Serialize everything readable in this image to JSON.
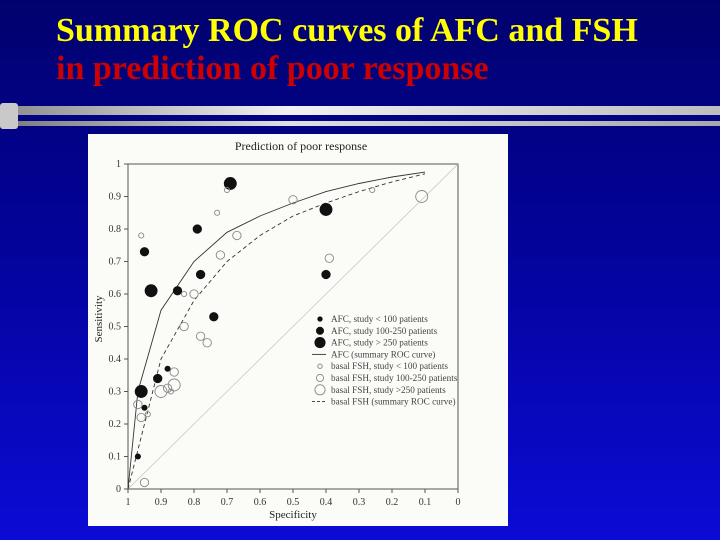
{
  "slide": {
    "title_line1": "Summary ROC curves of AFC and FSH",
    "title_line2": "in prediction of  poor response",
    "title_color_line1": "#ffff00",
    "title_color_line2": "#cc0000"
  },
  "chart_data": {
    "type": "scatter",
    "title": "Prediction of poor response",
    "xlabel": "Specificity",
    "ylabel": "Sensitivity",
    "x_reversed": true,
    "xlim": [
      1,
      0
    ],
    "ylim": [
      0,
      1
    ],
    "x_ticks": [
      "1",
      "0.9",
      "0.8",
      "0.7",
      "0.6",
      "0.5",
      "0.4",
      "0.3",
      "0.2",
      "0.1",
      "0"
    ],
    "x_tick_values": [
      1,
      0.9,
      0.8,
      0.7,
      0.6,
      0.5,
      0.4,
      0.3,
      0.2,
      0.1,
      0
    ],
    "y_ticks": [
      "0",
      "0.1",
      "0.2",
      "0.3",
      "0.4",
      "0.5",
      "0.6",
      "0.7",
      "0.8",
      "0.9",
      "1"
    ],
    "y_tick_values": [
      0,
      0.1,
      0.2,
      0.3,
      0.4,
      0.5,
      0.6,
      0.7,
      0.8,
      0.9,
      1
    ],
    "grid": false,
    "legend_position": "lower-right",
    "series": [
      {
        "name": "AFC, study < 100 patients",
        "marker": "filled",
        "size": "small",
        "points": [
          [
            0.97,
            0.1
          ],
          [
            0.88,
            0.37
          ],
          [
            0.95,
            0.25
          ]
        ]
      },
      {
        "name": "AFC, study 100-250 patients",
        "marker": "filled",
        "size": "medium",
        "points": [
          [
            0.95,
            0.73
          ],
          [
            0.79,
            0.8
          ],
          [
            0.85,
            0.61
          ],
          [
            0.78,
            0.66
          ],
          [
            0.74,
            0.53
          ],
          [
            0.91,
            0.34
          ],
          [
            0.4,
            0.66
          ]
        ]
      },
      {
        "name": "AFC, study > 250 patients",
        "marker": "filled",
        "size": "large",
        "points": [
          [
            0.69,
            0.94
          ],
          [
            0.4,
            0.86
          ],
          [
            0.93,
            0.61
          ],
          [
            0.96,
            0.3
          ]
        ]
      },
      {
        "name": "AFC (summary ROC curve)",
        "line": "solid",
        "points": [
          [
            1,
            0
          ],
          [
            0.97,
            0.3
          ],
          [
            0.9,
            0.55
          ],
          [
            0.8,
            0.7
          ],
          [
            0.7,
            0.79
          ],
          [
            0.6,
            0.84
          ],
          [
            0.5,
            0.88
          ],
          [
            0.4,
            0.915
          ],
          [
            0.3,
            0.94
          ],
          [
            0.2,
            0.96
          ],
          [
            0.1,
            0.975
          ]
        ]
      },
      {
        "name": "basal FSH, study < 100 patients",
        "marker": "open",
        "size": "small",
        "points": [
          [
            0.96,
            0.78
          ],
          [
            0.7,
            0.92
          ],
          [
            0.73,
            0.85
          ],
          [
            0.83,
            0.6
          ],
          [
            0.87,
            0.3
          ],
          [
            0.26,
            0.92
          ],
          [
            0.94,
            0.23
          ]
        ]
      },
      {
        "name": "basal FSH, study 100-250 patients",
        "marker": "open",
        "size": "medium",
        "points": [
          [
            0.8,
            0.6
          ],
          [
            0.72,
            0.72
          ],
          [
            0.78,
            0.47
          ],
          [
            0.76,
            0.45
          ],
          [
            0.83,
            0.5
          ],
          [
            0.86,
            0.36
          ],
          [
            0.39,
            0.71
          ],
          [
            0.67,
            0.78
          ],
          [
            0.5,
            0.89
          ],
          [
            0.88,
            0.31
          ],
          [
            0.96,
            0.22
          ],
          [
            0.97,
            0.26
          ],
          [
            0.95,
            0.02
          ]
        ]
      },
      {
        "name": "basal FSH, study >250 patients",
        "marker": "open",
        "size": "large",
        "points": [
          [
            0.11,
            0.9
          ],
          [
            0.86,
            0.32
          ],
          [
            0.9,
            0.3
          ]
        ]
      },
      {
        "name": "basal FSH (summary ROC curve)",
        "line": "dashed",
        "points": [
          [
            1,
            0
          ],
          [
            0.95,
            0.2
          ],
          [
            0.9,
            0.4
          ],
          [
            0.8,
            0.58
          ],
          [
            0.7,
            0.7
          ],
          [
            0.6,
            0.78
          ],
          [
            0.5,
            0.84
          ],
          [
            0.4,
            0.88
          ],
          [
            0.3,
            0.915
          ],
          [
            0.2,
            0.945
          ],
          [
            0.1,
            0.97
          ]
        ]
      }
    ]
  }
}
